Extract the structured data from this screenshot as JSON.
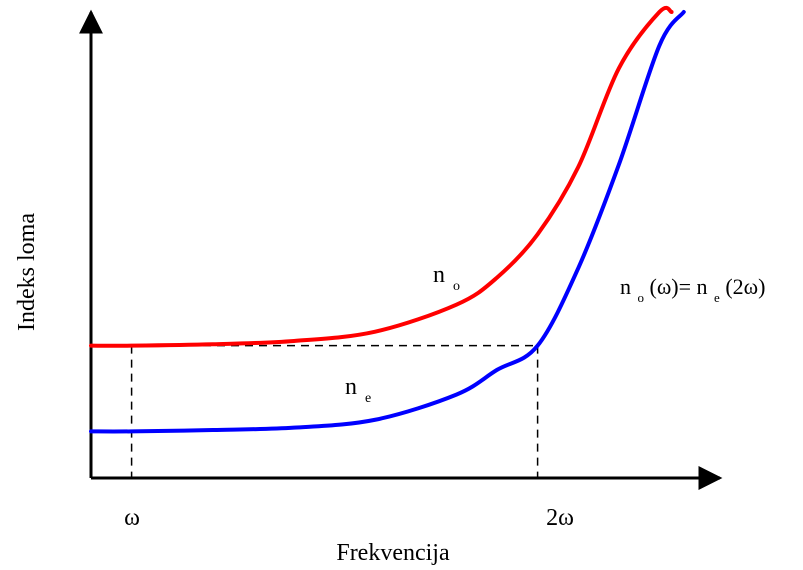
{
  "chart_data": {
    "type": "line",
    "title": "",
    "xlabel": "Frekvencija",
    "ylabel": "Indeks loma",
    "x_ticks": [
      {
        "label": "ω",
        "x": 1
      },
      {
        "label": "2ω",
        "x": 2
      }
    ],
    "xlim": [
      0.9,
      2.4
    ],
    "ylim": [
      0,
      1
    ],
    "grid": false,
    "legend": "none",
    "series": [
      {
        "name": "n_o",
        "label_main": "n",
        "label_sub": "o",
        "color": "#ff0000",
        "x": [
          0.9,
          1.0,
          1.2,
          1.4,
          1.6,
          1.8,
          1.9,
          2.0,
          2.1,
          2.2,
          2.3,
          2.33
        ],
        "values": [
          0.284,
          0.284,
          0.287,
          0.294,
          0.314,
          0.372,
          0.43,
          0.523,
          0.667,
          0.879,
          1.0,
          1.0
        ]
      },
      {
        "name": "n_e",
        "label_main": "n",
        "label_sub": "e",
        "color": "#0000ff",
        "x": [
          0.9,
          1.0,
          1.2,
          1.4,
          1.6,
          1.8,
          1.9,
          2.0,
          2.1,
          2.2,
          2.3,
          2.36
        ],
        "values": [
          0.1,
          0.1,
          0.103,
          0.108,
          0.125,
          0.179,
          0.232,
          0.284,
          0.45,
          0.672,
          0.928,
          1.0
        ]
      }
    ],
    "reference_lines": {
      "horizontal_value": 0.284,
      "vertical_at": [
        1,
        2
      ],
      "style": "dashed",
      "color": "#000000"
    },
    "annotations": [
      {
        "type": "equation",
        "parts": [
          "n",
          "o",
          "(ω)=",
          "n",
          "e",
          "(2ω)"
        ]
      }
    ]
  }
}
